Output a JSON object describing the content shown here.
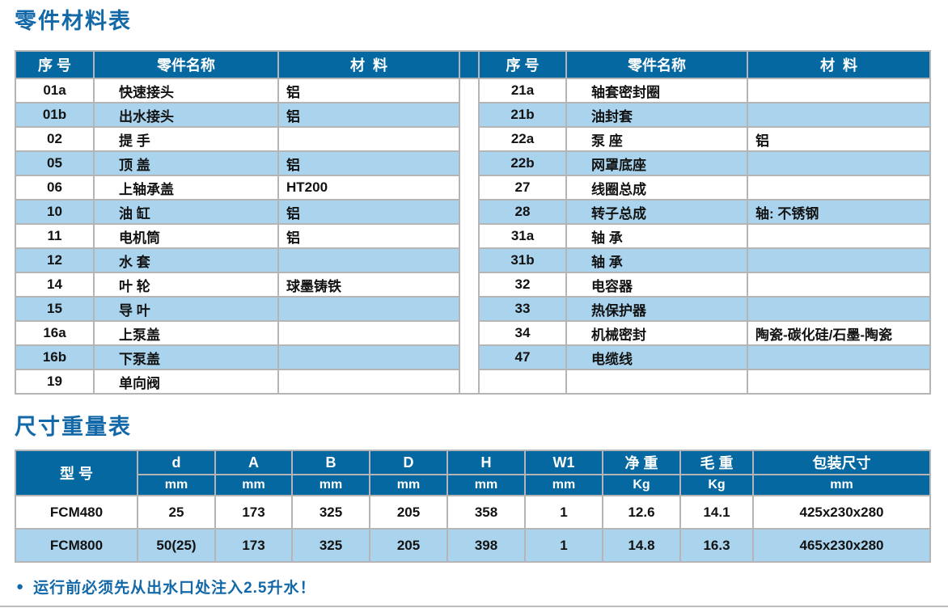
{
  "appearance": {
    "header_blue": "#0568a0",
    "row_alt_blue": "#aad4ee",
    "title_blue": "#1368a8",
    "border_gray": "#b5b5b5"
  },
  "parts_table": {
    "title": "零件材料表",
    "headers": [
      "序 号",
      "零件名称",
      "材  料"
    ],
    "left": {
      "rows": [
        {
          "no": "01a",
          "name": "快速接头",
          "mat": "铝"
        },
        {
          "no": "01b",
          "name": "出水接头",
          "mat": "铝"
        },
        {
          "no": "02",
          "name": "提 手",
          "mat": ""
        },
        {
          "no": "05",
          "name": "顶 盖",
          "mat": "铝"
        },
        {
          "no": "06",
          "name": "上轴承盖",
          "mat": "HT200"
        },
        {
          "no": "10",
          "name": "油 缸",
          "mat": "铝"
        },
        {
          "no": "11",
          "name": "电机筒",
          "mat": "铝"
        },
        {
          "no": "12",
          "name": "水 套",
          "mat": ""
        },
        {
          "no": "14",
          "name": "叶 轮",
          "mat": "球墨铸铁"
        },
        {
          "no": "15",
          "name": "导 叶",
          "mat": ""
        },
        {
          "no": "16a",
          "name": "上泵盖",
          "mat": ""
        },
        {
          "no": "16b",
          "name": "下泵盖",
          "mat": ""
        },
        {
          "no": "19",
          "name": "单向阀",
          "mat": ""
        }
      ]
    },
    "right": {
      "rows": [
        {
          "no": "21a",
          "name": "轴套密封圈",
          "mat": ""
        },
        {
          "no": "21b",
          "name": "油封套",
          "mat": ""
        },
        {
          "no": "22a",
          "name": "泵 座",
          "mat": "铝"
        },
        {
          "no": "22b",
          "name": "网罩底座",
          "mat": ""
        },
        {
          "no": "27",
          "name": "线圈总成",
          "mat": ""
        },
        {
          "no": "28",
          "name": "转子总成",
          "mat": "轴: 不锈钢"
        },
        {
          "no": "31a",
          "name": "轴 承",
          "mat": ""
        },
        {
          "no": "31b",
          "name": "轴 承",
          "mat": ""
        },
        {
          "no": "32",
          "name": "电容器",
          "mat": ""
        },
        {
          "no": "33",
          "name": "热保护器",
          "mat": ""
        },
        {
          "no": "34",
          "name": "机械密封",
          "mat": "陶瓷-碳化硅/石墨-陶瓷"
        },
        {
          "no": "47",
          "name": "电缆线",
          "mat": ""
        },
        {
          "no": "",
          "name": "",
          "mat": ""
        }
      ]
    }
  },
  "dim_table": {
    "title": "尺寸重量表",
    "model_header": "型 号",
    "cols": [
      {
        "label": "d",
        "unit": "mm"
      },
      {
        "label": "A",
        "unit": "mm"
      },
      {
        "label": "B",
        "unit": "mm"
      },
      {
        "label": "D",
        "unit": "mm"
      },
      {
        "label": "H",
        "unit": "mm"
      },
      {
        "label": "W1",
        "unit": "mm"
      },
      {
        "label": "净 重",
        "unit": "Kg"
      },
      {
        "label": "毛 重",
        "unit": "Kg"
      },
      {
        "label": "包装尺寸",
        "unit": "mm"
      }
    ],
    "rows": [
      {
        "model": "FCM480",
        "values": [
          "25",
          "173",
          "325",
          "205",
          "358",
          "1",
          "12.6",
          "14.1",
          "425x230x280"
        ]
      },
      {
        "model": "FCM800",
        "values": [
          "50(25)",
          "173",
          "325",
          "205",
          "398",
          "1",
          "14.8",
          "16.3",
          "465x230x280"
        ]
      }
    ]
  },
  "note": {
    "bullet": "●",
    "text": "运行前必须先从出水口处注入2.5升水！"
  }
}
